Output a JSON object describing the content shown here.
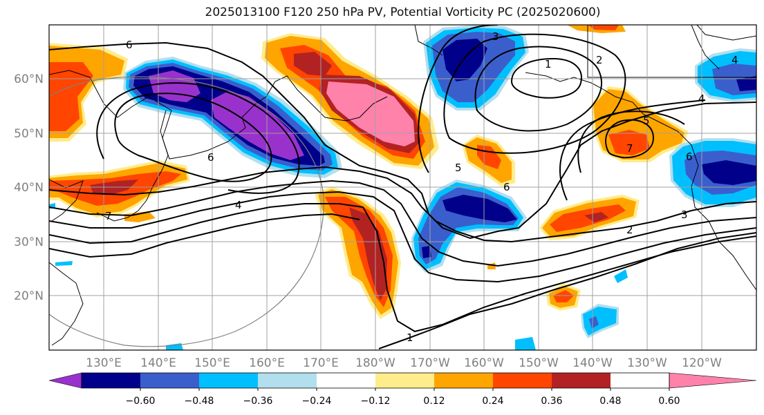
{
  "title": "2025013100 F120 250 hPa PV, Potential Vorticity PC (2025020600)",
  "lat_labels": [
    "60°N",
    "50°N",
    "40°N",
    "30°N",
    "20°N"
  ],
  "lon_labels": [
    "130°E",
    "140°E",
    "150°E",
    "160°E",
    "170°E",
    "180°W",
    "170°W",
    "160°W",
    "150°W",
    "140°W",
    "130°W",
    "120°W"
  ],
  "colorbar": {
    "ticks": [
      "−0.60",
      "−0.48",
      "−0.36",
      "−0.24",
      "−0.12",
      "0.12",
      "0.24",
      "0.36",
      "0.48",
      "0.60"
    ],
    "colors": [
      "#9932cc",
      "#00008b",
      "#3a5fcd",
      "#00bfff",
      "#b2dfee",
      "#ffffff",
      "#ffec8b",
      "#ffa500",
      "#ff4500",
      "#b22222",
      "#ff82ab"
    ]
  },
  "contour_labels": [
    "6",
    "6",
    "4",
    "7",
    "5",
    "6",
    "3",
    "1",
    "2",
    "4",
    "5",
    "7",
    "6",
    "3",
    "2",
    "1",
    "4"
  ],
  "colors": {
    "pink": "#ff82ab",
    "darkred": "#b22222",
    "red": "#ff4500",
    "orange": "#ffa500",
    "yellow": "#ffec8b",
    "purple": "#9932cc",
    "navy": "#00008b",
    "blue": "#3a5fcd",
    "cyan": "#00bfff",
    "lightblue": "#b2dfee",
    "grid": "#a0a0a0",
    "contour": "#000000"
  }
}
